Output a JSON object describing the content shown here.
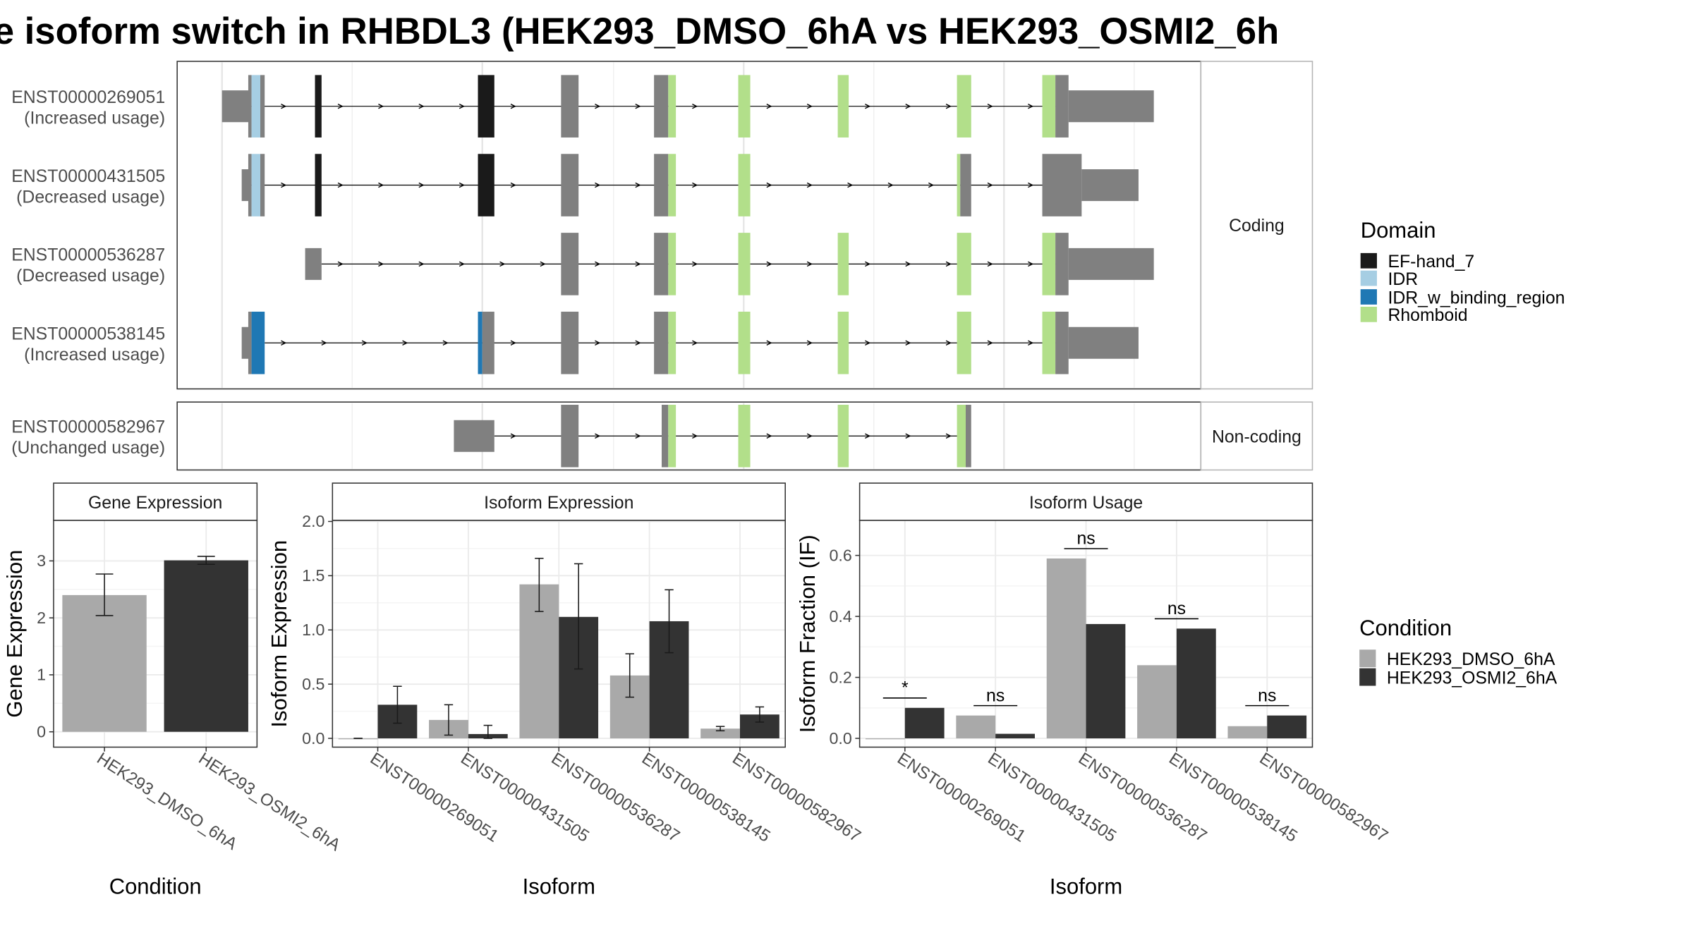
{
  "title": "e isoform switch in RHBDL3 (HEK293_DMSO_6hA vs HEK293_OSMI2_6h",
  "colors": {
    "utr": "#808080",
    "ef_hand_7": "#1a1a1a",
    "idr": "#a6cee3",
    "idr_w_binding_region": "#1f78b4",
    "rhomboid": "#b2df8a",
    "dmso": "#a9a9a9",
    "osmi2": "#333333"
  },
  "facets": {
    "coding": "Coding",
    "noncoding": "Non-coding"
  },
  "transcripts": [
    {
      "id": "ENST00000269051",
      "usage": "(Increased usage)"
    },
    {
      "id": "ENST00000431505",
      "usage": "(Decreased usage)"
    },
    {
      "id": "ENST00000536287",
      "usage": "(Decreased usage)"
    },
    {
      "id": "ENST00000538145",
      "usage": "(Increased usage)"
    },
    {
      "id": "ENST00000582967",
      "usage": "(Unchanged usage)"
    }
  ],
  "legend_domain": {
    "title": "Domain",
    "items": [
      {
        "label": "EF-hand_7",
        "color": "#1a1a1a"
      },
      {
        "label": "IDR",
        "color": "#a6cee3"
      },
      {
        "label": "IDR_w_binding_region",
        "color": "#1f78b4"
      },
      {
        "label": "Rhomboid",
        "color": "#b2df8a"
      }
    ]
  },
  "legend_condition": {
    "title": "Condition",
    "items": [
      {
        "label": "HEK293_DMSO_6hA",
        "color": "#a9a9a9"
      },
      {
        "label": "HEK293_OSMI2_6hA",
        "color": "#333333"
      }
    ]
  },
  "chart_data": [
    {
      "type": "bar",
      "title": "Gene Expression",
      "xlabel": "Condition",
      "ylabel": "Gene Expression",
      "ylim": [
        0,
        3.8
      ],
      "yticks": [
        0,
        1,
        2,
        3
      ],
      "categories": [
        "HEK293_DMSO_6hA",
        "HEK293_OSMI2_6hA"
      ],
      "values": [
        2.4,
        3.01
      ],
      "errors": [
        [
          2.04,
          2.77
        ],
        [
          2.94,
          3.08
        ]
      ]
    },
    {
      "type": "bar",
      "title": "Isoform Expression",
      "xlabel": "Isoform",
      "ylabel": "Isoform Expression",
      "ylim": [
        0,
        2.08
      ],
      "yticks": [
        0.0,
        0.5,
        1.0,
        1.5,
        2.0
      ],
      "categories": [
        "ENST00000269051",
        "ENST00000431505",
        "ENST00000536287",
        "ENST00000538145",
        "ENST00000582967"
      ],
      "series": [
        {
          "name": "HEK293_DMSO_6hA",
          "values": [
            0.0,
            0.17,
            1.42,
            0.58,
            0.09
          ],
          "errors": [
            [
              0.0,
              0.0
            ],
            [
              0.03,
              0.31
            ],
            [
              1.17,
              1.66
            ],
            [
              0.38,
              0.78
            ],
            [
              0.07,
              0.11
            ]
          ]
        },
        {
          "name": "HEK293_OSMI2_6hA",
          "values": [
            0.31,
            0.04,
            1.12,
            1.08,
            0.22
          ],
          "errors": [
            [
              0.14,
              0.48
            ],
            [
              0.0,
              0.12
            ],
            [
              0.64,
              1.61
            ],
            [
              0.79,
              1.37
            ],
            [
              0.15,
              0.29
            ]
          ]
        }
      ]
    },
    {
      "type": "bar",
      "title": "Isoform Usage",
      "xlabel": "Isoform",
      "ylabel": "Isoform Fraction (IF)",
      "ylim": [
        0,
        0.72
      ],
      "yticks": [
        0.0,
        0.2,
        0.4,
        0.6
      ],
      "categories": [
        "ENST00000269051",
        "ENST00000431505",
        "ENST00000536287",
        "ENST00000538145",
        "ENST00000582967"
      ],
      "series": [
        {
          "name": "HEK293_DMSO_6hA",
          "values": [
            0.0,
            0.075,
            0.59,
            0.24,
            0.04
          ]
        },
        {
          "name": "HEK293_OSMI2_6hA",
          "values": [
            0.1,
            0.015,
            0.375,
            0.36,
            0.075
          ]
        }
      ],
      "significance": [
        "*",
        "ns",
        "ns",
        "ns",
        "ns"
      ]
    }
  ]
}
